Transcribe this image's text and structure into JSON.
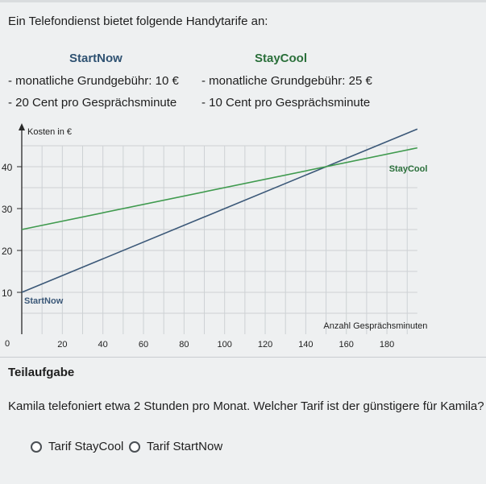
{
  "intro": "Ein Telefondienst bietet folgende Handytarife an:",
  "tariffs": [
    {
      "name": "StartNow",
      "fee": "- monatliche Grundgebühr: 10 €",
      "rate": "- 20 Cent pro Gesprächsminute"
    },
    {
      "name": "StayCool",
      "fee": "- monatliche Grundgebühr: 25 €",
      "rate": "- 10 Cent pro Gesprächsminute"
    }
  ],
  "chart_data": {
    "type": "line",
    "ylabel": "Kosten in €",
    "xlabel": "Anzahl Gesprächsminuten",
    "xlim": [
      0,
      195
    ],
    "ylim": [
      0,
      45
    ],
    "x_ticks": [
      "20",
      "40",
      "60",
      "80",
      "100",
      "120",
      "140",
      "160",
      "180"
    ],
    "y_ticks": [
      "10",
      "20",
      "30",
      "40"
    ],
    "origin_label": "0",
    "grid": true,
    "series": [
      {
        "name": "StartNow",
        "color": "#3b5878",
        "x": [
          0,
          195
        ],
        "y": [
          10,
          49
        ]
      },
      {
        "name": "StayCool",
        "color": "#3f9a4e",
        "x": [
          0,
          195
        ],
        "y": [
          25,
          44.5
        ]
      }
    ]
  },
  "task": {
    "title": "Teilaufgabe",
    "question": "Kamila telefoniert etwa 2 Stunden pro Monat. Welcher Tarif ist der günstigere für Kamila?",
    "options": [
      "Tarif StayCool",
      "Tarif StartNow"
    ]
  }
}
